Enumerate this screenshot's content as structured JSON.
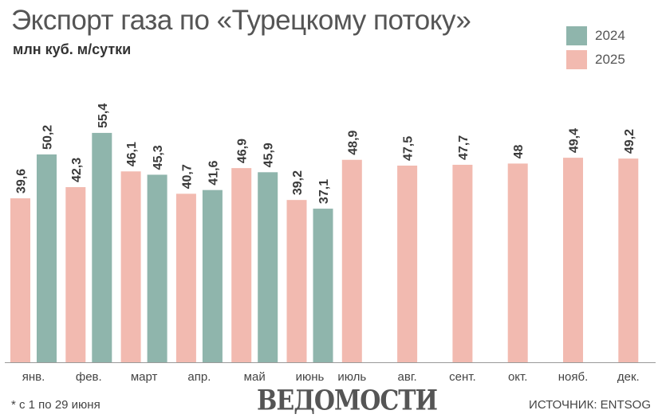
{
  "title": "Экспорт газа по «Турецкому потоку»",
  "subtitle": "млн куб. м/сутки",
  "footnote": "*  с 1 по 29 июня",
  "brand": "ВЕДОМОСТИ",
  "source": "ИСТОЧНИК: ENTSOG",
  "chart_data": {
    "type": "bar",
    "title": "Экспорт газа по «Турецкому потоку»",
    "ylabel": "млн куб. м/сутки",
    "xlabel": "",
    "ylim": [
      0,
      60
    ],
    "grid": false,
    "legend_position": "top-right",
    "categories": [
      "янв.",
      "фев.",
      "март",
      "апр.",
      "май",
      "июнь",
      "июль",
      "авг.",
      "сент.",
      "окт.",
      "нояб.",
      "дек."
    ],
    "series": [
      {
        "name": "2025",
        "color": "#f2bab0",
        "values": [
          39.6,
          42.3,
          46.1,
          40.7,
          46.9,
          39.2,
          null,
          null,
          null,
          null,
          null,
          null
        ],
        "labels": [
          "39,6",
          "42,3",
          "46,1",
          "40,7",
          "46,9",
          "39,2",
          null,
          null,
          null,
          null,
          null,
          null
        ]
      },
      {
        "name": "2024",
        "color": "#8fb5ac",
        "values": [
          50.2,
          55.4,
          45.3,
          41.6,
          45.9,
          37.1,
          48.9,
          47.5,
          47.7,
          48,
          49.4,
          49.2
        ],
        "labels": [
          "50,2",
          "55,4",
          "45,3",
          "41,6",
          "45,9",
          "37,1",
          "48,9",
          "47,5",
          "47,7",
          "48",
          "49,4",
          "49,2"
        ]
      }
    ]
  }
}
